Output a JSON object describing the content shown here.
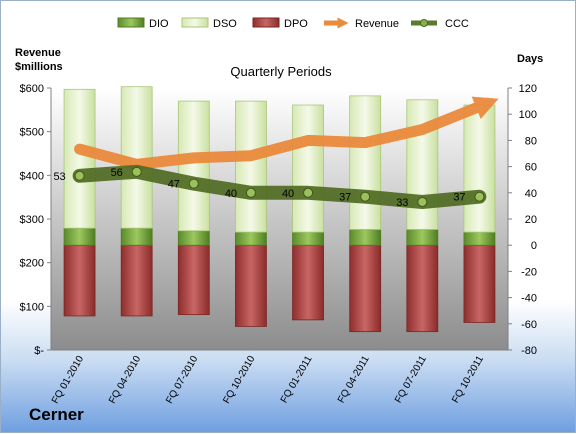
{
  "company": "Cerner",
  "chart_data": {
    "type": "bar",
    "title": "Quarterly Periods",
    "categories": [
      "FQ 01-2010",
      "FQ 04-2010",
      "FQ 07-2010",
      "FQ 10-2010",
      "FQ 01-2011",
      "FQ 04-2011",
      "FQ 07-2011",
      "FQ 10-2011"
    ],
    "left_axis": {
      "label": [
        "Revenue",
        "$millions"
      ],
      "ylim": [
        0,
        600
      ],
      "ticks": [
        0,
        100,
        200,
        300,
        400,
        500,
        600
      ],
      "tick_labels": [
        "$-",
        "$100",
        "$200",
        "$300",
        "$400",
        "$500",
        "$600"
      ]
    },
    "right_axis": {
      "label": "Days",
      "ylim": [
        -80,
        120
      ],
      "ticks": [
        -80,
        -60,
        -40,
        -20,
        0,
        20,
        40,
        60,
        80,
        100,
        120
      ],
      "tick_labels": [
        "-80",
        "-60",
        "-40",
        "-20",
        "0",
        "20",
        "40",
        "60",
        "80",
        "100",
        "120"
      ]
    },
    "series": [
      {
        "name": "DIO",
        "axis": "days",
        "values": [
          13,
          13,
          11,
          10,
          10,
          12,
          12,
          10
        ],
        "color": "#6fa33a"
      },
      {
        "name": "DSO",
        "axis": "days",
        "values": [
          106,
          108,
          99,
          100,
          97,
          102,
          99,
          97
        ],
        "color": "#e3efc6"
      },
      {
        "name": "DPO",
        "axis": "days",
        "values": [
          -54,
          -54,
          -53,
          -62,
          -57,
          -66,
          -66,
          -59
        ],
        "color": "#b34a48"
      },
      {
        "name": "Revenue",
        "axis": "revenue",
        "type": "line",
        "values": [
          460,
          425,
          440,
          445,
          480,
          475,
          505,
          565
        ],
        "color": "#ea8a3c"
      },
      {
        "name": "CCC",
        "axis": "days",
        "type": "line",
        "values": [
          53,
          56,
          47,
          40,
          40,
          37,
          33,
          37
        ],
        "labels": [
          "53",
          "56",
          "47",
          "40",
          "40",
          "37",
          "33",
          "37"
        ],
        "color": "#5d7a2c"
      }
    ],
    "legend": "top",
    "grid": false
  }
}
